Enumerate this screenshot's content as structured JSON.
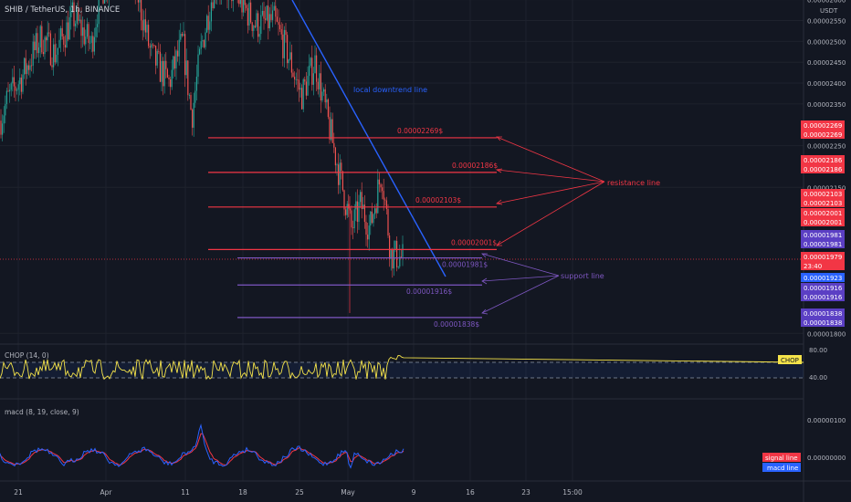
{
  "header": {
    "symbol": "SHIB / TetherUS, 1h, BINANCE"
  },
  "price_axis": {
    "unit": "USDT",
    "ticks": [
      "0.00002600",
      "0.00002550",
      "0.00002500",
      "0.00002450",
      "0.00002400",
      "0.00002350",
      "0.00002250",
      "0.00002150",
      "0.00001800"
    ]
  },
  "time_axis": {
    "labels": [
      "21",
      "Apr",
      "11",
      "18",
      "25",
      "May",
      "9",
      "16",
      "23",
      "15:00"
    ]
  },
  "badges": [
    {
      "text": "0.00002269",
      "color": "#f23645"
    },
    {
      "text": "0.00002269",
      "color": "#f23645"
    },
    {
      "text": "0.00002186",
      "color": "#f23645"
    },
    {
      "text": "0.00002186",
      "color": "#f23645"
    },
    {
      "text": "0.00002103",
      "color": "#f23645"
    },
    {
      "text": "0.00002103",
      "color": "#f23645"
    },
    {
      "text": "0.00002001",
      "color": "#f23645"
    },
    {
      "text": "0.00002001",
      "color": "#f23645"
    },
    {
      "text": "0.00001981",
      "color": "#5b3fc4"
    },
    {
      "text": "0.00001981",
      "color": "#5b3fc4"
    },
    {
      "text": "0.00001979",
      "color": "#f23645"
    },
    {
      "text": "23:40",
      "color": "#f23645"
    },
    {
      "text": "0.00001923",
      "color": "#2962ff"
    },
    {
      "text": "0.00001916",
      "color": "#5b3fc4"
    },
    {
      "text": "0.00001916",
      "color": "#5b3fc4"
    },
    {
      "text": "0.00001838",
      "color": "#5b3fc4"
    },
    {
      "text": "0.00001838",
      "color": "#5b3fc4"
    }
  ],
  "annotations": {
    "downtrend": "local downtrend line",
    "resistance": "resistance line",
    "support": "support line"
  },
  "chop": {
    "title": "CHOP (14, 0)",
    "badge": "CHOP",
    "ticks": [
      "80.00",
      "40.00"
    ]
  },
  "macd": {
    "title": "macd (8, 19, close, 9)",
    "ticks": [
      "0.00000100",
      "0.00000000"
    ],
    "legend": [
      {
        "label": "signal line",
        "color": "#f23645"
      },
      {
        "label": "macd line",
        "color": "#2962ff"
      }
    ]
  },
  "chart_data": {
    "type": "candlestick",
    "symbol": "SHIB / TetherUS",
    "interval": "1h",
    "y_unit": "USDT",
    "price_range_approx": [
      1.78e-05,
      2.62e-05
    ],
    "last_price": 1.979e-05,
    "horizontal_levels": [
      {
        "value": 2.269e-05,
        "label": "0.00002269$",
        "kind": "resistance",
        "color": "#f23645"
      },
      {
        "value": 2.186e-05,
        "label": "0.00002186$",
        "kind": "resistance",
        "color": "#f23645"
      },
      {
        "value": 2.103e-05,
        "label": "0.00002103$",
        "kind": "resistance",
        "color": "#f23645"
      },
      {
        "value": 2.001e-05,
        "label": "0.00002001$",
        "kind": "resistance",
        "color": "#f23645"
      },
      {
        "value": 1.981e-05,
        "label": "0.00001981$",
        "kind": "support",
        "color": "#7e57c2"
      },
      {
        "value": 1.916e-05,
        "label": "0.00001916$",
        "kind": "support",
        "color": "#7e57c2"
      },
      {
        "value": 1.838e-05,
        "label": "0.00001838$",
        "kind": "support",
        "color": "#7e57c2"
      }
    ],
    "colors": {
      "up": "#26a69a",
      "down": "#ef5350",
      "resistance": "#f23645",
      "support": "#7e57c2",
      "trend": "#2962ff",
      "chop": "#f5e34a"
    }
  }
}
